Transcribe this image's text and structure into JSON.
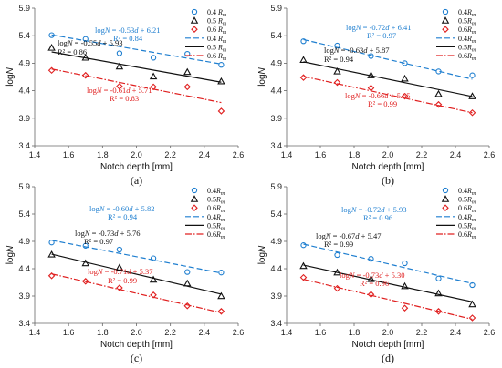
{
  "chart_data": [
    {
      "type": "scatter",
      "panel_label": "(a)",
      "xlabel": "Notch  depth [mm]",
      "ylabel": "logN",
      "xlim": [
        1.4,
        2.6
      ],
      "ylim": [
        3.4,
        5.9
      ],
      "xticks": [
        "1.4",
        "1.6",
        "1.8",
        "2.0",
        "2.2",
        "2.4",
        "2.6"
      ],
      "yticks": [
        "3.4",
        "3.9",
        "4.4",
        "4.9",
        "5.4",
        "5.9"
      ],
      "grid": false,
      "legend_position": "top-right",
      "series": [
        {
          "name": "0.4 R_m",
          "marker": "circle",
          "color": "#1f7fd0",
          "x": [
            1.5,
            1.7,
            1.9,
            2.1,
            2.3,
            2.5
          ],
          "y": [
            5.41,
            5.34,
            5.08,
            5.0,
            5.07,
            4.87
          ],
          "fit": {
            "slope": -0.53,
            "intercept": 6.21
          }
        },
        {
          "name": "0.5 R_m",
          "marker": "triangle",
          "color": "#111111",
          "x": [
            1.5,
            1.7,
            1.9,
            2.1,
            2.3,
            2.5
          ],
          "y": [
            5.18,
            5.0,
            4.84,
            4.66,
            4.74,
            4.57
          ],
          "fit": {
            "slope": -0.55,
            "intercept": 5.93
          }
        },
        {
          "name": "0.6 R_m",
          "marker": "diamond",
          "color": "#e02020",
          "x": [
            1.5,
            1.7,
            1.9,
            2.1,
            2.3,
            2.5
          ],
          "y": [
            4.77,
            4.68,
            4.48,
            4.47,
            4.47,
            4.03
          ],
          "fit": {
            "slope": -0.61,
            "intercept": 5.71
          }
        }
      ],
      "legend": [
        "0.4 R_m",
        "0.5 R_m",
        "0.6 R_m",
        "0.4 R_m",
        "0.5 R_m",
        "0.6 R_m"
      ],
      "annotations": [
        {
          "text": "logN = -0.53d + 6.21",
          "color": "#1f7fd0"
        },
        {
          "text": "R² = 0.84",
          "color": "#1f7fd0"
        },
        {
          "text": "logN = -0.55d + 5.93",
          "color": "#111111"
        },
        {
          "text": "R² = 0.86",
          "color": "#111111"
        },
        {
          "text": "logN = -0.61d + 5.71",
          "color": "#e02020"
        },
        {
          "text": "R² = 0.83",
          "color": "#e02020"
        }
      ]
    },
    {
      "type": "scatter",
      "panel_label": "(b)",
      "xlabel": "Notch  depth [mm]",
      "ylabel": "logN",
      "xlim": [
        1.4,
        2.6
      ],
      "ylim": [
        3.4,
        5.9
      ],
      "xticks": [
        "1.4",
        "1.6",
        "1.8",
        "2.0",
        "2.2",
        "2.4",
        "2.6"
      ],
      "yticks": [
        "3.4",
        "3.9",
        "4.4",
        "4.9",
        "5.4",
        "5.9"
      ],
      "grid": false,
      "legend_position": "top-right",
      "series": [
        {
          "name": "0.4R_m",
          "marker": "circle",
          "color": "#1f7fd0",
          "x": [
            1.5,
            1.7,
            1.9,
            2.1,
            2.3,
            2.5
          ],
          "y": [
            5.3,
            5.22,
            5.03,
            4.9,
            4.75,
            4.68
          ],
          "fit": {
            "slope": -0.72,
            "intercept": 6.41
          }
        },
        {
          "name": "0.5R_m",
          "marker": "triangle",
          "color": "#111111",
          "x": [
            1.5,
            1.7,
            1.9,
            2.1,
            2.3,
            2.5
          ],
          "y": [
            4.96,
            4.75,
            4.68,
            4.62,
            4.34,
            4.3
          ],
          "fit": {
            "slope": -0.63,
            "intercept": 5.87
          }
        },
        {
          "name": "0.6R_m",
          "marker": "diamond",
          "color": "#e02020",
          "x": [
            1.5,
            1.7,
            1.9,
            2.1,
            2.3,
            2.5
          ],
          "y": [
            4.64,
            4.55,
            4.45,
            4.3,
            4.15,
            4.0
          ],
          "fit": {
            "slope": -0.66,
            "intercept": 5.65
          }
        }
      ],
      "legend": [
        "0.4R_m",
        "0.5R_m",
        "0.6R_m",
        "0.4R_m",
        "0.5R_m",
        "0.6R_m"
      ],
      "annotations": [
        {
          "text": "logN = -0.72d + 6.41",
          "color": "#1f7fd0"
        },
        {
          "text": "R² = 0.97",
          "color": "#1f7fd0"
        },
        {
          "text": "logN = -0.63d + 5.87",
          "color": "#111111"
        },
        {
          "text": "R² = 0.94",
          "color": "#111111"
        },
        {
          "text": "logN = -0.66d + 5.65",
          "color": "#e02020"
        },
        {
          "text": "R² = 0.99",
          "color": "#e02020"
        }
      ]
    },
    {
      "type": "scatter",
      "panel_label": "(c)",
      "xlabel": "Notch  depth [mm]",
      "ylabel": "logN",
      "xlim": [
        1.4,
        2.6
      ],
      "ylim": [
        3.4,
        5.9
      ],
      "xticks": [
        "1.4",
        "1.6",
        "1.8",
        "2.0",
        "2.2",
        "2.4",
        "2.6"
      ],
      "yticks": [
        "3.4",
        "3.9",
        "4.4",
        "4.9",
        "5.4",
        "5.9"
      ],
      "grid": false,
      "legend_position": "top-right",
      "series": [
        {
          "name": "0.4R_m",
          "marker": "circle",
          "color": "#1f7fd0",
          "x": [
            1.5,
            1.7,
            1.9,
            2.1,
            2.3,
            2.5
          ],
          "y": [
            4.88,
            4.82,
            4.75,
            4.59,
            4.34,
            4.33
          ],
          "fit": {
            "slope": -0.6,
            "intercept": 5.82
          }
        },
        {
          "name": "0.5R_m",
          "marker": "triangle",
          "color": "#111111",
          "x": [
            1.5,
            1.7,
            1.9,
            2.1,
            2.3,
            2.5
          ],
          "y": [
            4.66,
            4.5,
            4.42,
            4.2,
            4.13,
            3.9
          ],
          "fit": {
            "slope": -0.73,
            "intercept": 5.76
          }
        },
        {
          "name": "0.6R_m",
          "marker": "diamond",
          "color": "#e02020",
          "x": [
            1.5,
            1.7,
            1.9,
            2.1,
            2.3,
            2.5
          ],
          "y": [
            4.27,
            4.17,
            4.05,
            3.92,
            3.72,
            3.62
          ],
          "fit": {
            "slope": -0.71,
            "intercept": 5.37
          }
        }
      ],
      "legend": [
        "0.4R_m",
        "0.5R_m",
        "0.6R_m",
        "0.4R_m",
        "0.5R_m",
        "0.6R_m"
      ],
      "annotations": [
        {
          "text": "logN = -0.60d + 5.82",
          "color": "#1f7fd0"
        },
        {
          "text": "R² = 0.94",
          "color": "#1f7fd0"
        },
        {
          "text": "logN = -0.73d + 5.76",
          "color": "#111111"
        },
        {
          "text": "R² = 0.97",
          "color": "#111111"
        },
        {
          "text": "logN = -0.71d + 5.37",
          "color": "#e02020"
        },
        {
          "text": "R² = 0.99",
          "color": "#e02020"
        }
      ]
    },
    {
      "type": "scatter",
      "panel_label": "(d)",
      "xlabel": "Notch  depth [mm]",
      "ylabel": "logN",
      "xlim": [
        1.4,
        2.6
      ],
      "ylim": [
        3.4,
        5.9
      ],
      "xticks": [
        "1.4",
        "1.6",
        "1.8",
        "2.0",
        "2.2",
        "2.4",
        "2.6"
      ],
      "yticks": [
        "3.4",
        "3.9",
        "4.4",
        "4.9",
        "5.4",
        "5.9"
      ],
      "grid": false,
      "legend_position": "top-right",
      "series": [
        {
          "name": "0.4R_m",
          "marker": "circle",
          "color": "#1f7fd0",
          "x": [
            1.5,
            1.7,
            1.9,
            2.1,
            2.3,
            2.5
          ],
          "y": [
            4.83,
            4.65,
            4.58,
            4.5,
            4.22,
            4.1
          ],
          "fit": {
            "slope": -0.72,
            "intercept": 5.93
          }
        },
        {
          "name": "0.5R_m",
          "marker": "triangle",
          "color": "#111111",
          "x": [
            1.5,
            1.7,
            1.9,
            2.1,
            2.3,
            2.5
          ],
          "y": [
            4.45,
            4.33,
            4.21,
            4.08,
            3.95,
            3.75
          ],
          "fit": {
            "slope": -0.67,
            "intercept": 5.47
          }
        },
        {
          "name": "0.6R_m",
          "marker": "diamond",
          "color": "#e02020",
          "x": [
            1.5,
            1.7,
            1.9,
            2.1,
            2.3,
            2.5
          ],
          "y": [
            4.24,
            4.04,
            3.93,
            3.68,
            3.62,
            3.5
          ],
          "fit": {
            "slope": -0.73,
            "intercept": 5.3
          }
        }
      ],
      "legend": [
        "0.4R_m",
        "0.5R_m",
        "0.6R_m",
        "0.4R_m",
        "0.5R_m",
        "0.6R_m"
      ],
      "annotations": [
        {
          "text": "logN = -0.72d + 5.93",
          "color": "#1f7fd0"
        },
        {
          "text": "R² = 0.96",
          "color": "#1f7fd0"
        },
        {
          "text": "logN = -0.67d + 5.47",
          "color": "#111111"
        },
        {
          "text": "R² = 0.99",
          "color": "#111111"
        },
        {
          "text": "logN = -0.73d + 5.30",
          "color": "#e02020"
        },
        {
          "text": "R² = 0.96",
          "color": "#e02020"
        }
      ]
    }
  ]
}
